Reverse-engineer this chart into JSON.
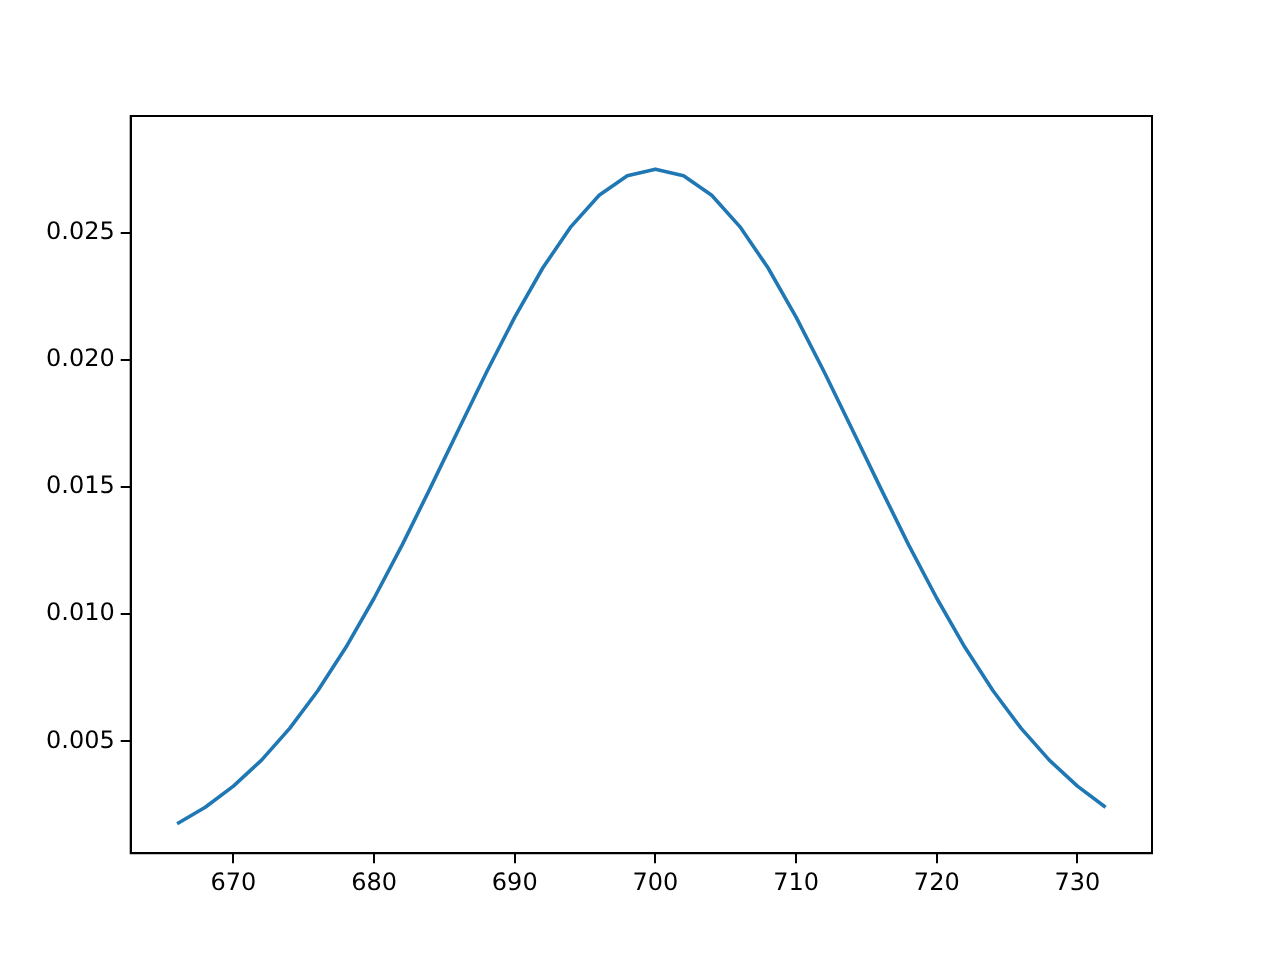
{
  "chart_data": {
    "type": "line",
    "x": [
      666,
      668,
      670,
      672,
      674,
      676,
      678,
      680,
      682,
      684,
      686,
      688,
      690,
      692,
      694,
      696,
      698,
      700,
      702,
      704,
      706,
      708,
      710,
      712,
      714,
      716,
      718,
      720,
      722,
      724,
      726,
      728,
      730,
      732
    ],
    "series": [
      {
        "color": "#1f77b4",
        "values": [
          0.00176,
          0.00241,
          0.00324,
          0.00426,
          0.00551,
          0.00699,
          0.0087,
          0.01063,
          0.01273,
          0.01497,
          0.01726,
          0.01953,
          0.02169,
          0.02363,
          0.02525,
          0.02648,
          0.02725,
          0.02751,
          0.02725,
          0.02648,
          0.02525,
          0.02363,
          0.02169,
          0.01953,
          0.01726,
          0.01497,
          0.01273,
          0.01063,
          0.0087,
          0.00699,
          0.00551,
          0.00426,
          0.00324,
          0.00241
        ]
      }
    ],
    "xlim": [
      662.7,
      735.3
    ],
    "xticks": [
      670,
      680,
      690,
      700,
      710,
      720,
      730
    ],
    "ylim": [
      0.0006,
      0.0296
    ],
    "yticks": [
      {
        "value": 0.005,
        "label": "0.005"
      },
      {
        "value": 0.01,
        "label": "0.010"
      },
      {
        "value": 0.015,
        "label": "0.015"
      },
      {
        "value": 0.02,
        "label": "0.020"
      },
      {
        "value": 0.025,
        "label": "0.025"
      }
    ],
    "marker": "none",
    "line_style": "solid"
  }
}
